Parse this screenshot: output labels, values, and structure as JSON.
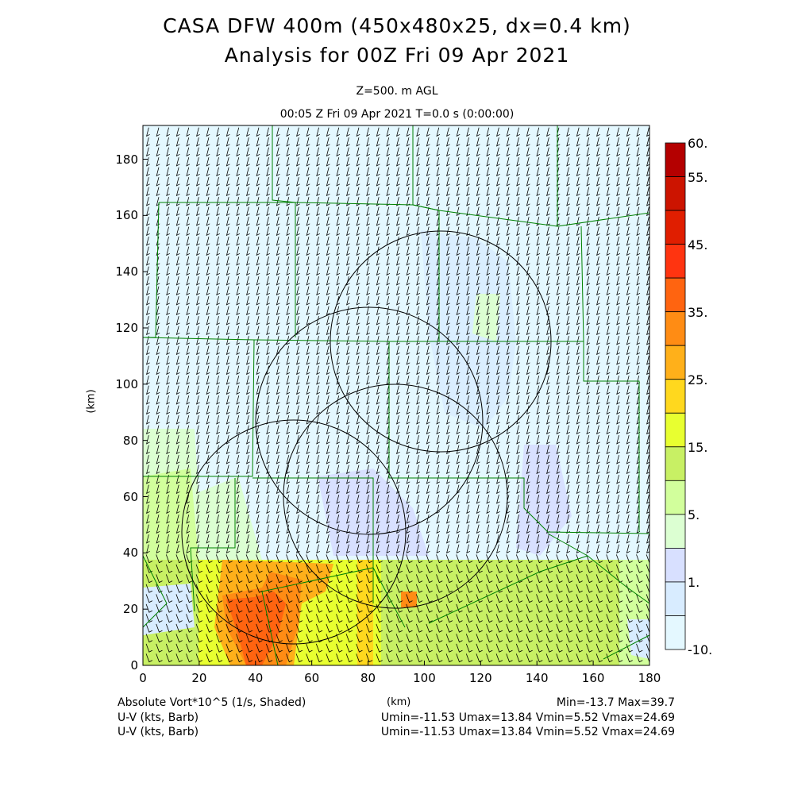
{
  "header": {
    "title1": "CASA DFW 400m (450x480x25, dx=0.4 km)",
    "title2": "Analysis for 00Z Fri 09 Apr 2021",
    "level": "Z=500. m AGL",
    "time": "00:05 Z Fri 09 Apr 2021   T=0.0 s (0:00:00)"
  },
  "footer": {
    "field_label": "Absolute Vort*10^5 (1/s, Shaded)",
    "xunit": "(km)",
    "minmax": "Min=-13.7 Max=39.7",
    "barb1_label": "U-V (kts, Barb)",
    "barb1_stats": "Umin=-11.53 Umax=13.84 Vmin=5.52 Vmax=24.69",
    "barb2_label": "U-V (kts, Barb)",
    "barb2_stats": "Umin=-11.53 Umax=13.84 Vmin=5.52 Vmax=24.69"
  },
  "chart_data": {
    "type": "heatmap",
    "title": "CASA DFW 400m (450x480x25, dx=0.4 km)",
    "xlabel": "(km)",
    "ylabel": "(km)",
    "xlim": [
      0,
      180
    ],
    "ylim": [
      0,
      192
    ],
    "xticks": [
      "0",
      "20",
      "40",
      "60",
      "80",
      "100",
      "120",
      "140",
      "160",
      "180"
    ],
    "yticks": [
      "0",
      "20",
      "40",
      "60",
      "80",
      "100",
      "120",
      "140",
      "160",
      "180"
    ],
    "colorbar": {
      "labels": [
        "60.",
        "55.",
        "45.",
        "35.",
        "25.",
        "15.",
        "5.",
        "1.",
        "-10."
      ],
      "colors": [
        "#b40000",
        "#cc1400",
        "#e01e00",
        "#ff3410",
        "#ff6410",
        "#ff8c14",
        "#ffb01a",
        "#ffd81e",
        "#e8ff30",
        "#c8f064",
        "#d2ff9c",
        "#dcffd2",
        "#d8e0ff",
        "#d8ecff",
        "#e4f8ff"
      ]
    },
    "field_min": -13.7,
    "field_max": 39.7,
    "wind": {
      "umin": -11.53,
      "umax": 13.84,
      "vmin": 5.52,
      "vmax": 24.69
    }
  }
}
